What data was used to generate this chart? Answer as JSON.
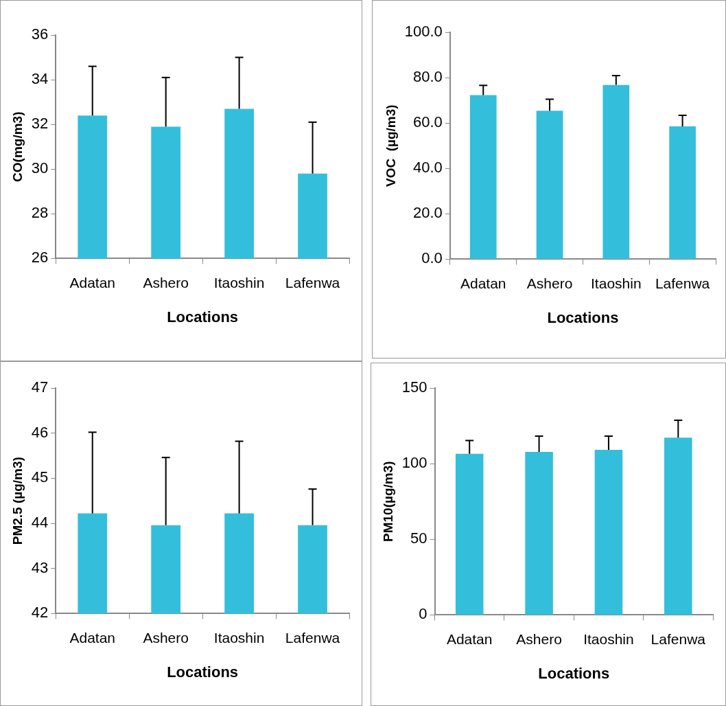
{
  "chart_data": [
    {
      "type": "bar",
      "xlabel": "Locations",
      "ylabel": "CO(mg/m3)",
      "categories": [
        "Adatan",
        "Ashero",
        "Itaoshin",
        "Lafenwa"
      ],
      "values": [
        32.4,
        31.9,
        32.7,
        29.8
      ],
      "errors": [
        [
          32.4,
          34.6
        ],
        [
          31.9,
          34.1
        ],
        [
          32.7,
          35.0
        ],
        [
          29.8,
          32.1
        ]
      ],
      "color": "#33bfdb",
      "ylim": [
        26,
        36
      ],
      "yticks": [
        26,
        28,
        30,
        32,
        34,
        36
      ],
      "grid": false,
      "legend": false
    },
    {
      "type": "bar",
      "xlabel": "Locations",
      "ylabel": "VOC  (µg/m3)",
      "categories": [
        "Adatan",
        "Ashero",
        "Itaoshin",
        "Lafenwa"
      ],
      "values": [
        72.3,
        65.4,
        76.8,
        58.5
      ],
      "errors": [
        [
          72.3,
          76.6
        ],
        [
          65.4,
          70.5
        ],
        [
          76.8,
          80.9
        ],
        [
          58.5,
          63.4
        ]
      ],
      "color": "#33bfdb",
      "ylim": [
        0,
        100
      ],
      "yticks": [
        {
          "value": 0,
          "label": "0.0"
        },
        {
          "value": 20,
          "label": "20.0"
        },
        {
          "value": 40,
          "label": "40.0"
        },
        {
          "value": 60,
          "label": "60.0"
        },
        {
          "value": 80,
          "label": "80.0"
        },
        {
          "value": 100,
          "label": "100.0"
        }
      ],
      "grid": false,
      "legend": false
    },
    {
      "type": "bar",
      "xlabel": "Locations",
      "ylabel": "PM2.5 (µg/m3)",
      "categories": [
        "Adatan",
        "Ashero",
        "Itaoshin",
        "Lafenwa"
      ],
      "values": [
        44.22,
        43.96,
        44.22,
        43.96
      ],
      "errors": [
        [
          44.22,
          46.02
        ],
        [
          43.96,
          45.46
        ],
        [
          44.22,
          45.82
        ],
        [
          43.96,
          44.76
        ]
      ],
      "color": "#33bfdb",
      "ylim": [
        42,
        47
      ],
      "yticks": [
        42,
        43,
        44,
        45,
        46,
        47
      ],
      "grid": false,
      "legend": false
    },
    {
      "type": "bar",
      "xlabel": "Locations",
      "ylabel": "PM10(µg/m3)",
      "categories": [
        "Adatan",
        "Ashero",
        "Itaoshin",
        "Lafenwa"
      ],
      "values": [
        106.5,
        107.8,
        109.1,
        117.2
      ],
      "errors": [
        [
          106.5,
          115.3
        ],
        [
          107.8,
          118.2
        ],
        [
          109.1,
          118.2
        ],
        [
          117.2,
          128.7
        ]
      ],
      "color": "#33bfdb",
      "ylim": [
        0,
        150
      ],
      "yticks": [
        0,
        50,
        100,
        150
      ],
      "grid": false,
      "legend": false
    }
  ]
}
